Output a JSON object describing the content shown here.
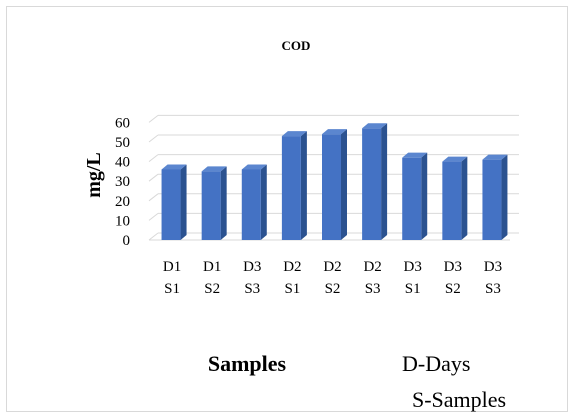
{
  "chart_data": {
    "type": "bar",
    "title": "COD",
    "ylabel": "mg/L",
    "xlabel": "Samples",
    "categories": [
      [
        "D1",
        "S1"
      ],
      [
        "D1",
        "S2"
      ],
      [
        "D3",
        "S3"
      ],
      [
        "D2",
        "S1"
      ],
      [
        "D2",
        "S2"
      ],
      [
        "D2",
        "S3"
      ],
      [
        "D3",
        "S1"
      ],
      [
        "D3",
        "S2"
      ],
      [
        "D3",
        "S3"
      ]
    ],
    "values": [
      36,
      35,
      36,
      53,
      54,
      57,
      42,
      40,
      41
    ],
    "ylim": [
      0,
      60
    ],
    "yticks": [
      0,
      10,
      20,
      30,
      40,
      50,
      60
    ],
    "grid": true,
    "style": "3d-column",
    "bar_color": "#4472c4"
  },
  "notes": {
    "line1": "D-Days",
    "line2": "S-Samples"
  }
}
